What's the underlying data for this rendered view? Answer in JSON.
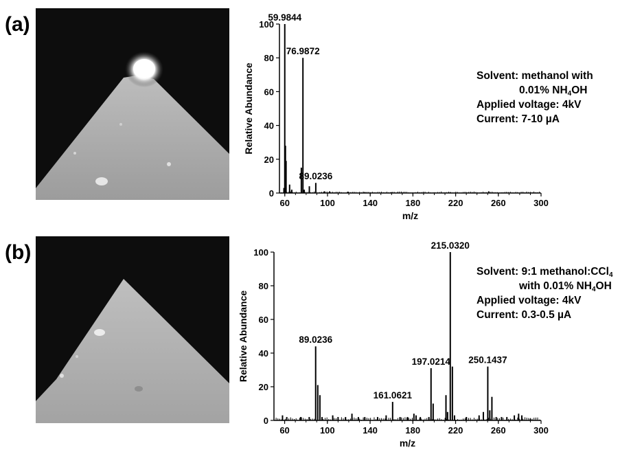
{
  "panels": [
    {
      "label": "(a)",
      "conditions": {
        "solvent_label": "Solvent:",
        "solvent_line1": "methanol with",
        "solvent_line2_pre": "0.01% NH",
        "solvent_line2_sub": "4",
        "solvent_line2_post": "OH",
        "voltage": "Applied voltage: 4kV",
        "current": "Current: 7-10 µA"
      }
    },
    {
      "label": "(b)",
      "conditions": {
        "solvent_label": "Solvent:",
        "solvent_line1_pre": "9:1 methanol:CCl",
        "solvent_line1_sub": "4",
        "solvent_line2_pre": "with 0.01% NH",
        "solvent_line2_sub": "4",
        "solvent_line2_post": "OH",
        "voltage": "Applied voltage: 4kV",
        "current": "Current: 0.3-0.5 µA"
      }
    }
  ],
  "chart_data": [
    {
      "type": "bar",
      "xlabel": "m/z",
      "ylabel": "Relative Abundance",
      "xlim": [
        55,
        300
      ],
      "ylim": [
        0,
        100
      ],
      "xticks": [
        60,
        100,
        140,
        180,
        220,
        260,
        300
      ],
      "yticks": [
        0,
        20,
        40,
        60,
        80,
        100
      ],
      "peaks": [
        {
          "x": 59.9844,
          "y": 100,
          "label": "59.9844"
        },
        {
          "x": 60.6,
          "y": 28
        },
        {
          "x": 61.2,
          "y": 19
        },
        {
          "x": 59.2,
          "y": 3
        },
        {
          "x": 64.5,
          "y": 5
        },
        {
          "x": 66.5,
          "y": 2
        },
        {
          "x": 75.5,
          "y": 15
        },
        {
          "x": 76.9872,
          "y": 80,
          "label": "76.9872"
        },
        {
          "x": 78.2,
          "y": 2
        },
        {
          "x": 83.0,
          "y": 4
        },
        {
          "x": 89.0236,
          "y": 6,
          "label": "89.0236"
        },
        {
          "x": 97.0,
          "y": 1
        },
        {
          "x": 102.0,
          "y": 1
        },
        {
          "x": 119.0,
          "y": 0.8
        },
        {
          "x": 135.0,
          "y": 0.6
        },
        {
          "x": 160.0,
          "y": 0.5
        },
        {
          "x": 215.0,
          "y": 0.5
        },
        {
          "x": 251.0,
          "y": 1
        }
      ]
    },
    {
      "type": "bar",
      "xlabel": "m/z",
      "ylabel": "Relative Abundance",
      "xlim": [
        50,
        300
      ],
      "ylim": [
        0,
        100
      ],
      "xticks": [
        60,
        100,
        140,
        180,
        220,
        260,
        300
      ],
      "yticks": [
        0,
        20,
        40,
        60,
        80,
        100
      ],
      "peaks": [
        {
          "x": 58,
          "y": 3
        },
        {
          "x": 62,
          "y": 2
        },
        {
          "x": 75,
          "y": 2
        },
        {
          "x": 83,
          "y": 2
        },
        {
          "x": 89.0236,
          "y": 44,
          "label": "89.0236"
        },
        {
          "x": 91,
          "y": 21
        },
        {
          "x": 93,
          "y": 15
        },
        {
          "x": 95,
          "y": 2
        },
        {
          "x": 105,
          "y": 3
        },
        {
          "x": 110,
          "y": 2
        },
        {
          "x": 117,
          "y": 2
        },
        {
          "x": 123,
          "y": 4
        },
        {
          "x": 129,
          "y": 2
        },
        {
          "x": 135,
          "y": 2
        },
        {
          "x": 147,
          "y": 2
        },
        {
          "x": 155,
          "y": 3
        },
        {
          "x": 161.0621,
          "y": 11,
          "label": "161.0621"
        },
        {
          "x": 168,
          "y": 2
        },
        {
          "x": 175,
          "y": 2
        },
        {
          "x": 181,
          "y": 4
        },
        {
          "x": 183,
          "y": 3
        },
        {
          "x": 187,
          "y": 2
        },
        {
          "x": 195,
          "y": 2
        },
        {
          "x": 197.0214,
          "y": 31,
          "label": "197.0214"
        },
        {
          "x": 199,
          "y": 10
        },
        {
          "x": 211,
          "y": 15
        },
        {
          "x": 212.5,
          "y": 5
        },
        {
          "x": 215.032,
          "y": 100,
          "label": "215.0320"
        },
        {
          "x": 217,
          "y": 32
        },
        {
          "x": 219,
          "y": 3
        },
        {
          "x": 230,
          "y": 2
        },
        {
          "x": 242,
          "y": 3
        },
        {
          "x": 246,
          "y": 5
        },
        {
          "x": 250.1437,
          "y": 32,
          "label": "250.1437"
        },
        {
          "x": 252,
          "y": 6
        },
        {
          "x": 254,
          "y": 14
        },
        {
          "x": 258,
          "y": 2
        },
        {
          "x": 263,
          "y": 2
        },
        {
          "x": 268,
          "y": 2
        },
        {
          "x": 275,
          "y": 3
        },
        {
          "x": 279,
          "y": 4
        },
        {
          "x": 282,
          "y": 3
        },
        {
          "x": 290,
          "y": 1
        }
      ]
    }
  ]
}
